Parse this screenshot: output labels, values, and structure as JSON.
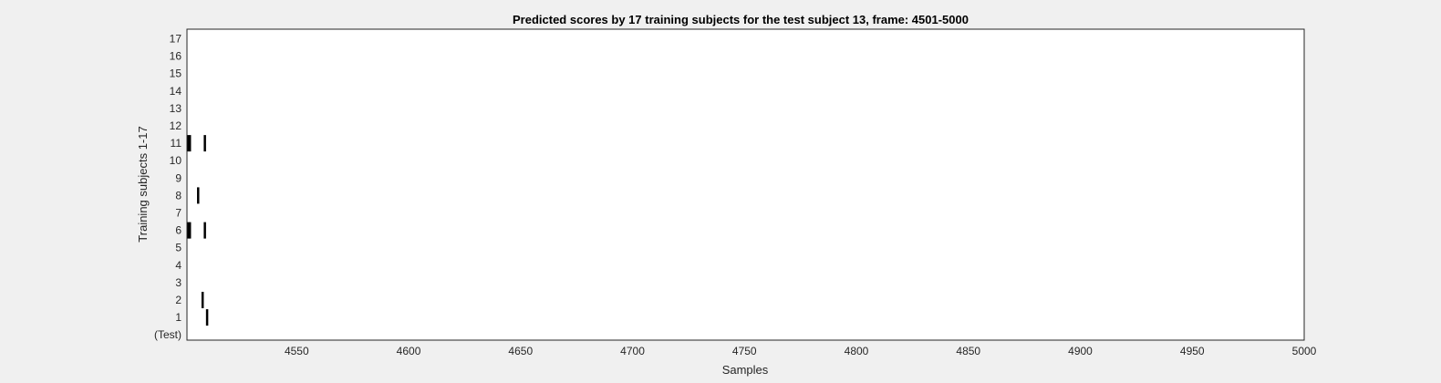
{
  "chart_data": {
    "type": "scatter",
    "title": "Predicted scores by 17 training subjects for the test subject 13, frame: 4501-5000",
    "xlabel": "Samples",
    "ylabel": "Training subjects 1-17",
    "xlim": [
      4501,
      5000
    ],
    "x_ticks": [
      4550,
      4600,
      4650,
      4700,
      4750,
      4800,
      4850,
      4900,
      4950,
      5000
    ],
    "y_tick_labels": [
      "(Test)",
      "1",
      "2",
      "3",
      "4",
      "5",
      "6",
      "7",
      "8",
      "9",
      "10",
      "11",
      "12",
      "13",
      "14",
      "15",
      "16",
      "17"
    ],
    "grid": false,
    "mark_color": "#000000",
    "events": [
      {
        "subject": "11",
        "x": 4502,
        "bold": true
      },
      {
        "subject": "11",
        "x": 4509,
        "bold": false
      },
      {
        "subject": "8",
        "x": 4506,
        "bold": false
      },
      {
        "subject": "6",
        "x": 4502,
        "bold": true
      },
      {
        "subject": "6",
        "x": 4509,
        "bold": false
      },
      {
        "subject": "2",
        "x": 4508,
        "bold": false
      },
      {
        "subject": "1",
        "x": 4510,
        "bold": false
      }
    ]
  }
}
